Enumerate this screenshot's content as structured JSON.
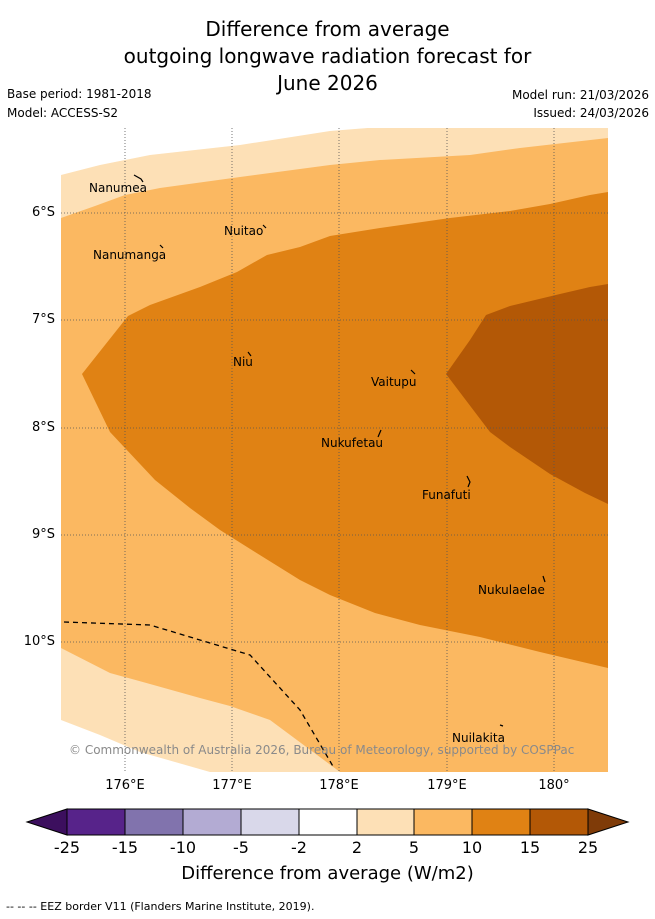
{
  "title": {
    "line1": "Difference from average",
    "line2": "outgoing longwave radiation forecast for",
    "line3": "June 2026"
  },
  "meta": {
    "base_period": "Base period: 1981-2018",
    "model": "Model: ACCESS-S2",
    "model_run": "Model run: 21/03/2026",
    "issued": "Issued: 24/03/2026"
  },
  "axes": {
    "lat_labels": [
      "6°S",
      "7°S",
      "8°S",
      "9°S",
      "10°S"
    ],
    "lon_labels": [
      "176°E",
      "177°E",
      "178°E",
      "179°E",
      "180°"
    ]
  },
  "places": [
    {
      "name": "Nanumea",
      "label": "Nanumea"
    },
    {
      "name": "Nuitao",
      "label": "Nuitao"
    },
    {
      "name": "Nanumanga",
      "label": "Nanumanga"
    },
    {
      "name": "Niu",
      "label": "Niu"
    },
    {
      "name": "Vaitupu",
      "label": "Vaitupu"
    },
    {
      "name": "Nukufetau",
      "label": "Nukufetau"
    },
    {
      "name": "Funafuti",
      "label": "Funafuti"
    },
    {
      "name": "Nukulaelae",
      "label": "Nukulaelae"
    },
    {
      "name": "Nuilakita",
      "label": "Nuilakita"
    }
  ],
  "copyright": "© Commonwealth of Australia 2026, Bureau of Meteorology, supported by COSPPac",
  "colorbar": {
    "ticks": [
      "-25",
      "-15",
      "-10",
      "-5",
      "-2",
      "2",
      "5",
      "10",
      "15",
      "25"
    ],
    "colors": [
      "#3c0f5e",
      "#57238a",
      "#8173ad",
      "#b3abd3",
      "#d9d8ea",
      "#ffffff",
      "#fde0b6",
      "#fbb861",
      "#e08214",
      "#b35806",
      "#7f3b08"
    ],
    "title": "Difference from average (W/m2)"
  },
  "legend_note": "-- -- -- EEZ border V11 (Flanders Marine Institute, 2019)."
}
